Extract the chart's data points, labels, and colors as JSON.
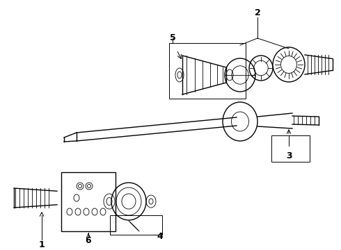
{
  "bg_color": "#ffffff",
  "line_color": "#000000",
  "fig_width": 4.9,
  "fig_height": 3.6,
  "dpi": 100,
  "label_fontsize": 9,
  "label_fontweight": "bold"
}
